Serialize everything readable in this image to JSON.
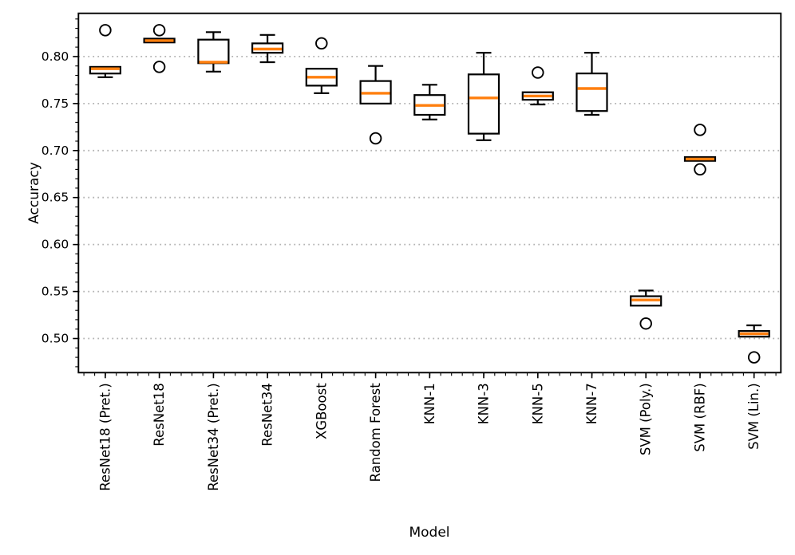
{
  "chart_data": {
    "type": "boxplot",
    "title": "",
    "xlabel": "Model",
    "ylabel": "Accuracy",
    "ylim": [
      0.4637,
      0.846
    ],
    "yticks": [
      0.5,
      0.55,
      0.6,
      0.65,
      0.7,
      0.75,
      0.8
    ],
    "ytick_labels": [
      "0.50",
      "0.55",
      "0.60",
      "0.65",
      "0.70",
      "0.75",
      "0.80"
    ],
    "y_minor_step": 0.01,
    "grid": "horizontal-dotted",
    "legend_position": "none",
    "categories": [
      "ResNet18 (Pret.)",
      "ResNet18",
      "ResNet34 (Pret.)",
      "ResNet34",
      "XGBoost",
      "Random Forest",
      "KNN-1",
      "KNN-3",
      "KNN-5",
      "KNN-7",
      "SVM (Poly.)",
      "SVM (RBF)",
      "SVM (Lin.)"
    ],
    "boxes": [
      {
        "label": "ResNet18 (Pret.)",
        "whislo": 0.778,
        "q1": 0.782,
        "med": 0.787,
        "q3": 0.789,
        "whishi": 0.789,
        "fliers": [
          0.828
        ]
      },
      {
        "label": "ResNet18",
        "whislo": 0.815,
        "q1": 0.815,
        "med": 0.817,
        "q3": 0.819,
        "whishi": 0.819,
        "fliers": [
          0.828,
          0.789
        ]
      },
      {
        "label": "ResNet34 (Pret.)",
        "whislo": 0.784,
        "q1": 0.793,
        "med": 0.794,
        "q3": 0.818,
        "whishi": 0.826,
        "fliers": []
      },
      {
        "label": "ResNet34",
        "whislo": 0.794,
        "q1": 0.804,
        "med": 0.808,
        "q3": 0.814,
        "whishi": 0.823,
        "fliers": []
      },
      {
        "label": "XGBoost",
        "whislo": 0.761,
        "q1": 0.769,
        "med": 0.778,
        "q3": 0.787,
        "whishi": 0.787,
        "fliers": [
          0.814
        ]
      },
      {
        "label": "Random Forest",
        "whislo": 0.75,
        "q1": 0.75,
        "med": 0.761,
        "q3": 0.774,
        "whishi": 0.79,
        "fliers": [
          0.713
        ]
      },
      {
        "label": "KNN-1",
        "whislo": 0.733,
        "q1": 0.738,
        "med": 0.748,
        "q3": 0.759,
        "whishi": 0.77,
        "fliers": []
      },
      {
        "label": "KNN-3",
        "whislo": 0.711,
        "q1": 0.718,
        "med": 0.756,
        "q3": 0.781,
        "whishi": 0.804,
        "fliers": []
      },
      {
        "label": "KNN-5",
        "whislo": 0.749,
        "q1": 0.754,
        "med": 0.758,
        "q3": 0.762,
        "whishi": 0.762,
        "fliers": [
          0.783
        ]
      },
      {
        "label": "KNN-7",
        "whislo": 0.738,
        "q1": 0.742,
        "med": 0.766,
        "q3": 0.782,
        "whishi": 0.804,
        "fliers": []
      },
      {
        "label": "SVM (Poly.)",
        "whislo": 0.535,
        "q1": 0.535,
        "med": 0.541,
        "q3": 0.545,
        "whishi": 0.551,
        "fliers": [
          0.516
        ]
      },
      {
        "label": "SVM (RBF)",
        "whislo": 0.689,
        "q1": 0.689,
        "med": 0.691,
        "q3": 0.693,
        "whishi": 0.693,
        "fliers": [
          0.722,
          0.68
        ]
      },
      {
        "label": "SVM (Lin.)",
        "whislo": 0.502,
        "q1": 0.502,
        "med": 0.505,
        "q3": 0.508,
        "whishi": 0.514,
        "fliers": [
          0.48
        ]
      }
    ],
    "colors": {
      "median": "#ff7f0e",
      "box_edge": "#000000",
      "box_fill": "#ffffff",
      "flier_edge": "#000000",
      "grid": "#b3b3b3",
      "background": "#ffffff",
      "text": "#000000"
    }
  }
}
